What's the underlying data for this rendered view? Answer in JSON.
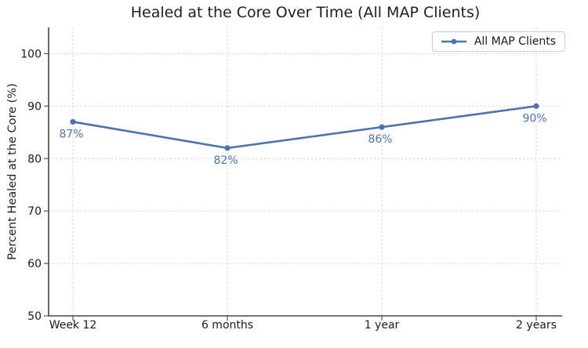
{
  "chart_data": {
    "type": "line",
    "title": "Healed at the Core Over Time (All MAP Clients)",
    "ylabel": "Percent Healed at the Core (%)",
    "categories": [
      "Week 12",
      "6 months",
      "1 year",
      "2 years"
    ],
    "series": [
      {
        "name": "All MAP Clients",
        "values": [
          87,
          82,
          86,
          90
        ],
        "point_labels": [
          "87%",
          "82%",
          "86%",
          "90%"
        ],
        "color": "#4C72B0"
      }
    ],
    "ylim": [
      50,
      105
    ],
    "yticks": [
      50,
      60,
      70,
      80,
      90,
      100
    ],
    "grid": "dashed-both-directions",
    "legend_position": "upper-right"
  },
  "colors": {
    "accent": "#4C72B0",
    "grid": "#d6d6d6",
    "axis": "#454545",
    "text": "#1a1a1a",
    "background": "#ffffff"
  }
}
